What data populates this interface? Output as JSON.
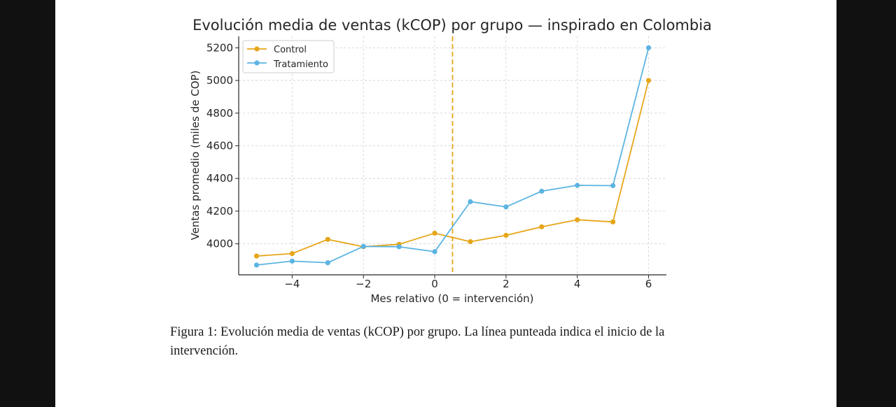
{
  "figure": {
    "caption": "Figura 1: Evolución media de ventas (kCOP) por grupo. La línea punteada indica el inicio de la intervención."
  },
  "chart_data": {
    "type": "line",
    "title": "Evolución media de ventas (kCOP) por grupo — inspirado en Colombia",
    "xlabel": "Mes relativo (0 = intervención)",
    "ylabel": "Ventas promedio (miles de COP)",
    "x": [
      -5,
      -4,
      -3,
      -2,
      -1,
      0,
      1,
      2,
      3,
      4,
      5,
      6
    ],
    "xlim": [
      -5.5,
      6.5
    ],
    "ylim": [
      3810,
      5270
    ],
    "xticks": [
      -4,
      -2,
      0,
      2,
      4,
      6
    ],
    "xtick_labels": [
      "−4",
      "−2",
      "0",
      "2",
      "4",
      "6"
    ],
    "yticks": [
      4000,
      4200,
      4400,
      4600,
      4800,
      5000,
      5200
    ],
    "ytick_labels": [
      "4000",
      "4200",
      "4400",
      "4600",
      "4800",
      "5000",
      "5200"
    ],
    "grid": true,
    "legend_position": "top-left",
    "vline": {
      "x": 0.5,
      "color": "#E6A619",
      "style": "dashed"
    },
    "series": [
      {
        "name": "Control",
        "color": "#E6A619",
        "values": [
          3925,
          3940,
          4027,
          3982,
          3997,
          4065,
          4013,
          4052,
          4104,
          4147,
          4134,
          5000
        ]
      },
      {
        "name": "Tratamiento",
        "color": "#5BB4E2",
        "values": [
          3870,
          3894,
          3884,
          3984,
          3982,
          3952,
          4258,
          4226,
          4322,
          4358,
          4356,
          5200
        ]
      }
    ]
  }
}
